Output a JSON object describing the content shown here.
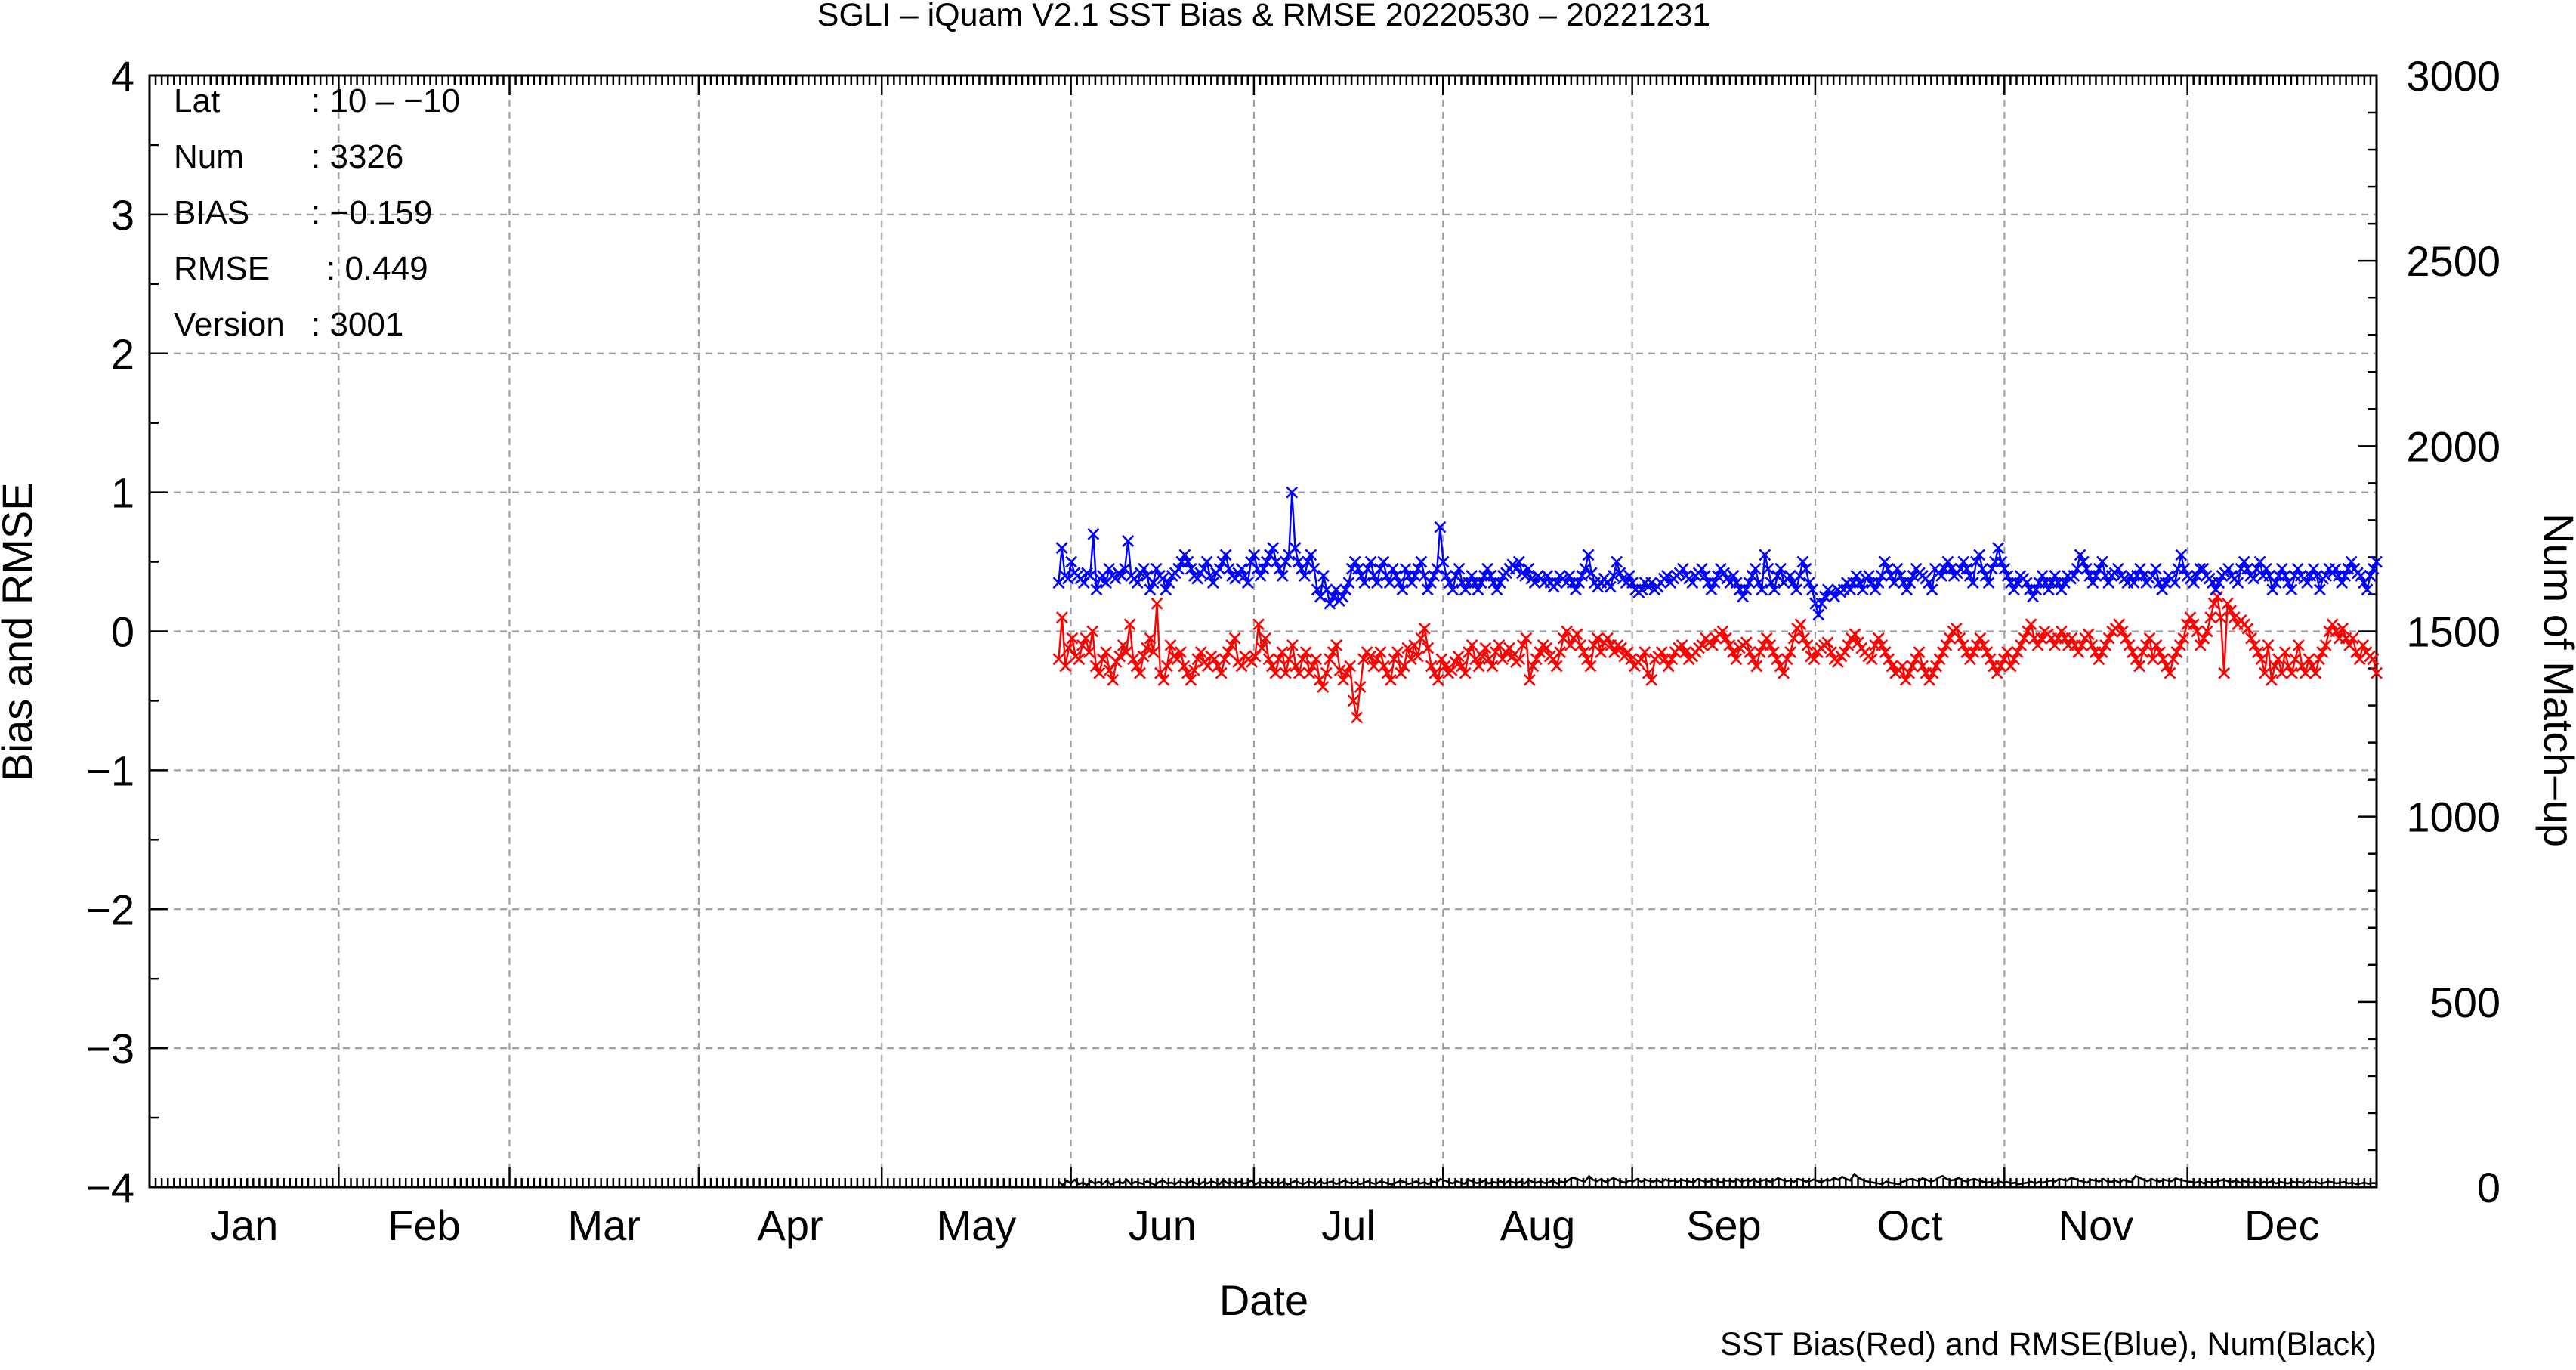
{
  "chart_data": {
    "type": "line",
    "title": "SGLI – iQuam V2.1 SST Bias & RMSE 20220530 – 20221231",
    "xlabel": "Date",
    "ylabel_left": "Bias and RMSE",
    "ylabel_right": "Num of Match–up",
    "footer": "SST Bias(Red) and RMSE(Blue), Num(Black)",
    "x_tick_labels": [
      "Jan",
      "Feb",
      "Mar",
      "Apr",
      "May",
      "Jun",
      "Jul",
      "Aug",
      "Sep",
      "Oct",
      "Nov",
      "Dec"
    ],
    "month_start_days": [
      1,
      32,
      60,
      91,
      121,
      152,
      182,
      213,
      244,
      274,
      305,
      335
    ],
    "xlim_day_of_year": [
      1,
      366
    ],
    "ylim_left": [
      -4,
      4
    ],
    "ylim_right": [
      0,
      3000
    ],
    "yticks_left": [
      "4",
      "3",
      "2",
      "1",
      "0",
      "−1",
      "−2",
      "−3",
      "−4"
    ],
    "yticks_right": [
      "3000",
      "2500",
      "2000",
      "1500",
      "1000",
      "500",
      "0"
    ],
    "grid": true,
    "info_box": [
      {
        "key": "Lat",
        "value": ": 10 – −10"
      },
      {
        "key": "Num",
        "value": ": 3326"
      },
      {
        "key": "BIAS",
        "value": ": −0.159"
      },
      {
        "key": "RMSE",
        "value": ": 0.449"
      },
      {
        "key": "Version",
        "value": ": 3001"
      }
    ],
    "series_start_day_of_year": 150,
    "series": [
      {
        "color": "#ff0000",
        "marker": "x",
        "axis": "left",
        "values": [
          -0.2,
          0.1,
          -0.25,
          -0.12,
          -0.05,
          -0.18,
          -0.2,
          -0.1,
          -0.05,
          -0.15,
          0.0,
          -0.25,
          -0.3,
          -0.2,
          -0.15,
          -0.28,
          -0.35,
          -0.22,
          -0.18,
          -0.1,
          -0.15,
          0.05,
          -0.2,
          -0.25,
          -0.3,
          -0.18,
          -0.12,
          -0.05,
          -0.15,
          0.2,
          -0.3,
          -0.35,
          -0.25,
          -0.1,
          -0.18,
          -0.2,
          -0.15,
          -0.25,
          -0.3,
          -0.35,
          -0.28,
          -0.2,
          -0.15,
          -0.22,
          -0.25,
          -0.18,
          -0.2,
          -0.25,
          -0.3,
          -0.2,
          -0.15,
          -0.1,
          -0.05,
          -0.22,
          -0.25,
          -0.18,
          -0.2,
          -0.22,
          -0.18,
          0.05,
          -0.12,
          -0.05,
          -0.2,
          -0.25,
          -0.3,
          -0.2,
          -0.15,
          -0.3,
          -0.2,
          -0.1,
          -0.25,
          -0.3,
          -0.2,
          -0.15,
          -0.3,
          -0.25,
          -0.2,
          -0.35,
          -0.4,
          -0.3,
          -0.2,
          -0.15,
          -0.1,
          -0.28,
          -0.35,
          -0.3,
          -0.25,
          -0.5,
          -0.62,
          -0.4,
          -0.2,
          -0.15,
          -0.18,
          -0.25,
          -0.2,
          -0.15,
          -0.25,
          -0.3,
          -0.35,
          -0.2,
          -0.15,
          -0.3,
          -0.25,
          -0.12,
          -0.2,
          -0.1,
          -0.18,
          -0.05,
          0.02,
          -0.12,
          -0.25,
          -0.3,
          -0.35,
          -0.2,
          -0.25,
          -0.3,
          -0.28,
          -0.22,
          -0.18,
          -0.25,
          -0.3,
          -0.15,
          -0.1,
          -0.2,
          -0.25,
          -0.18,
          -0.12,
          -0.2,
          -0.25,
          -0.15,
          -0.1,
          -0.2,
          -0.15,
          -0.12,
          -0.18,
          -0.22,
          -0.2,
          -0.1,
          -0.05,
          -0.35,
          -0.25,
          -0.2,
          -0.15,
          -0.1,
          -0.12,
          -0.18,
          -0.2,
          -0.25,
          -0.15,
          -0.05,
          0.0,
          -0.1,
          -0.05,
          -0.02,
          -0.1,
          -0.15,
          -0.2,
          -0.25,
          -0.1,
          -0.05,
          -0.15,
          -0.08,
          -0.05,
          -0.1,
          -0.15,
          -0.1,
          -0.12,
          -0.18,
          -0.15,
          -0.2,
          -0.25,
          -0.22,
          -0.2,
          -0.15,
          -0.3,
          -0.35,
          -0.2,
          -0.18,
          -0.15,
          -0.2,
          -0.25,
          -0.2,
          -0.15,
          -0.12,
          -0.1,
          -0.15,
          -0.2,
          -0.18,
          -0.15,
          -0.12,
          -0.1,
          -0.05,
          -0.08,
          -0.1,
          -0.05,
          -0.02,
          0.0,
          -0.05,
          -0.1,
          -0.15,
          -0.2,
          -0.12,
          -0.1,
          -0.08,
          -0.15,
          -0.2,
          -0.25,
          -0.15,
          -0.1,
          -0.05,
          -0.1,
          -0.15,
          -0.2,
          -0.25,
          -0.3,
          -0.2,
          -0.15,
          -0.05,
          0.02,
          0.05,
          -0.05,
          -0.1,
          -0.18,
          -0.2,
          -0.15,
          -0.12,
          -0.1,
          -0.08,
          -0.15,
          -0.2,
          -0.22,
          -0.18,
          -0.15,
          -0.1,
          -0.05,
          -0.02,
          -0.08,
          -0.12,
          -0.15,
          -0.18,
          -0.2,
          -0.1,
          -0.05,
          -0.1,
          -0.15,
          -0.2,
          -0.25,
          -0.3,
          -0.28,
          -0.25,
          -0.35,
          -0.3,
          -0.25,
          -0.2,
          -0.15,
          -0.25,
          -0.3,
          -0.35,
          -0.3,
          -0.25,
          -0.2,
          -0.15,
          -0.1,
          -0.05,
          0.0,
          0.02,
          -0.05,
          -0.1,
          -0.15,
          -0.2,
          -0.15,
          -0.1,
          -0.05,
          -0.1,
          -0.15,
          -0.2,
          -0.25,
          -0.3,
          -0.25,
          -0.2,
          -0.15,
          -0.25,
          -0.2,
          -0.15,
          -0.1,
          -0.05,
          0.0,
          0.05,
          -0.05,
          -0.1,
          -0.05,
          0.0,
          -0.02,
          -0.05,
          -0.1,
          -0.05,
          0.0,
          -0.05,
          -0.1,
          -0.05,
          -0.1,
          -0.15,
          -0.1,
          -0.05,
          -0.02,
          -0.1,
          -0.15,
          -0.2,
          -0.15,
          -0.1,
          -0.05,
          0.0,
          0.02,
          0.05,
          0.0,
          -0.05,
          -0.1,
          -0.15,
          -0.2,
          -0.25,
          -0.15,
          -0.1,
          -0.05,
          -0.2,
          -0.1,
          -0.15,
          -0.2,
          -0.25,
          -0.3,
          -0.2,
          -0.15,
          -0.1,
          -0.05,
          0.05,
          0.1,
          0.05,
          0.0,
          -0.1,
          -0.05,
          0.0,
          0.1,
          0.2,
          0.25,
          0.1,
          -0.3,
          0.2,
          0.15,
          0.1,
          0.05,
          0.08,
          0.05,
          0.02,
          -0.05,
          -0.1,
          -0.15,
          -0.2,
          -0.3,
          -0.1,
          -0.35,
          -0.25,
          -0.2,
          -0.3,
          -0.15,
          -0.25,
          -0.3,
          -0.2,
          -0.1,
          -0.25,
          -0.3,
          -0.2,
          -0.25,
          -0.3,
          -0.2,
          -0.15,
          -0.1,
          0.0,
          0.05,
          0.0,
          -0.05,
          0.02,
          -0.05,
          -0.1,
          -0.05,
          -0.15,
          -0.2,
          -0.1,
          -0.15,
          -0.18,
          -0.2,
          -0.3
        ]
      },
      {
        "color": "#0000ff",
        "marker": "x",
        "axis": "left",
        "values": [
          0.35,
          0.6,
          0.4,
          0.38,
          0.5,
          0.42,
          0.4,
          0.38,
          0.35,
          0.42,
          0.4,
          0.7,
          0.3,
          0.38,
          0.4,
          0.35,
          0.45,
          0.4,
          0.38,
          0.42,
          0.4,
          0.45,
          0.65,
          0.4,
          0.38,
          0.35,
          0.42,
          0.45,
          0.4,
          0.3,
          0.35,
          0.45,
          0.4,
          0.38,
          0.3,
          0.35,
          0.4,
          0.42,
          0.45,
          0.5,
          0.55,
          0.5,
          0.45,
          0.4,
          0.38,
          0.42,
          0.45,
          0.5,
          0.4,
          0.35,
          0.42,
          0.45,
          0.5,
          0.55,
          0.45,
          0.4,
          0.38,
          0.42,
          0.45,
          0.4,
          0.35,
          0.5,
          0.55,
          0.45,
          0.4,
          0.45,
          0.5,
          0.55,
          0.6,
          0.5,
          0.45,
          0.4,
          0.5,
          0.55,
          1.0,
          0.6,
          0.5,
          0.45,
          0.4,
          0.5,
          0.55,
          0.45,
          0.3,
          0.25,
          0.4,
          0.3,
          0.2,
          0.25,
          0.3,
          0.22,
          0.25,
          0.3,
          0.35,
          0.45,
          0.5,
          0.45,
          0.4,
          0.35,
          0.45,
          0.5,
          0.4,
          0.35,
          0.45,
          0.5,
          0.4,
          0.35,
          0.45,
          0.4,
          0.35,
          0.3,
          0.45,
          0.4,
          0.35,
          0.4,
          0.45,
          0.5,
          0.4,
          0.3,
          0.35,
          0.4,
          0.45,
          0.75,
          0.5,
          0.4,
          0.35,
          0.3,
          0.4,
          0.45,
          0.35,
          0.3,
          0.35,
          0.4,
          0.35,
          0.3,
          0.35,
          0.4,
          0.45,
          0.4,
          0.35,
          0.3,
          0.35,
          0.4,
          0.42,
          0.45,
          0.48,
          0.45,
          0.5,
          0.42,
          0.4,
          0.45,
          0.38,
          0.35,
          0.4,
          0.38,
          0.35,
          0.4,
          0.35,
          0.32,
          0.35,
          0.4,
          0.38,
          0.35,
          0.4,
          0.35,
          0.3,
          0.35,
          0.4,
          0.45,
          0.55,
          0.42,
          0.35,
          0.32,
          0.35,
          0.38,
          0.35,
          0.32,
          0.4,
          0.5,
          0.42,
          0.38,
          0.35,
          0.4,
          0.35,
          0.3,
          0.28,
          0.3,
          0.35,
          0.32,
          0.35,
          0.3,
          0.32,
          0.35,
          0.38,
          0.4,
          0.35,
          0.38,
          0.4,
          0.42,
          0.45,
          0.4,
          0.38,
          0.35,
          0.4,
          0.42,
          0.45,
          0.4,
          0.35,
          0.3,
          0.35,
          0.4,
          0.45,
          0.42,
          0.38,
          0.35,
          0.4,
          0.35,
          0.3,
          0.25,
          0.3,
          0.35,
          0.4,
          0.45,
          0.35,
          0.3,
          0.55,
          0.45,
          0.35,
          0.3,
          0.4,
          0.45,
          0.35,
          0.38,
          0.4,
          0.35,
          0.3,
          0.4,
          0.5,
          0.45,
          0.35,
          0.3,
          0.2,
          0.12,
          0.2,
          0.25,
          0.3,
          0.28,
          0.25,
          0.3,
          0.28,
          0.3,
          0.35,
          0.3,
          0.35,
          0.4,
          0.35,
          0.3,
          0.38,
          0.4,
          0.35,
          0.3,
          0.35,
          0.4,
          0.5,
          0.45,
          0.4,
          0.35,
          0.45,
          0.4,
          0.35,
          0.3,
          0.35,
          0.4,
          0.45,
          0.42,
          0.4,
          0.38,
          0.35,
          0.3,
          0.45,
          0.42,
          0.4,
          0.45,
          0.5,
          0.45,
          0.4,
          0.42,
          0.45,
          0.5,
          0.45,
          0.4,
          0.35,
          0.5,
          0.55,
          0.45,
          0.4,
          0.35,
          0.45,
          0.5,
          0.6,
          0.5,
          0.45,
          0.4,
          0.35,
          0.3,
          0.35,
          0.4,
          0.38,
          0.35,
          0.3,
          0.25,
          0.3,
          0.35,
          0.4,
          0.35,
          0.3,
          0.35,
          0.4,
          0.35,
          0.3,
          0.35,
          0.4,
          0.38,
          0.4,
          0.45,
          0.55,
          0.5,
          0.45,
          0.4,
          0.35,
          0.4,
          0.45,
          0.5,
          0.4,
          0.35,
          0.4,
          0.42,
          0.45,
          0.4,
          0.38,
          0.35,
          0.4,
          0.35,
          0.4,
          0.45,
          0.4,
          0.35,
          0.38,
          0.4,
          0.45,
          0.35,
          0.3,
          0.35,
          0.4,
          0.38,
          0.35,
          0.45,
          0.55,
          0.45,
          0.4,
          0.38,
          0.35,
          0.4,
          0.45,
          0.45,
          0.4,
          0.38,
          0.35,
          0.3,
          0.35,
          0.4,
          0.42,
          0.45,
          0.4,
          0.38,
          0.35,
          0.45,
          0.5,
          0.45,
          0.4,
          0.38,
          0.45,
          0.5,
          0.4,
          0.45,
          0.4,
          0.3,
          0.35,
          0.4,
          0.45,
          0.4,
          0.35,
          0.3,
          0.4,
          0.45,
          0.4,
          0.38,
          0.35,
          0.4,
          0.45,
          0.4,
          0.3,
          0.38,
          0.4,
          0.45,
          0.42,
          0.45,
          0.4,
          0.35,
          0.4,
          0.45,
          0.5,
          0.45,
          0.42,
          0.4,
          0.35,
          0.3,
          0.4,
          0.45,
          0.5
        ]
      },
      {
        "color": "#000000",
        "marker": "none",
        "axis": "right",
        "values": [
          15,
          5,
          18,
          10,
          20,
          8,
          12,
          6,
          16,
          10,
          14,
          9,
          18,
          7,
          12,
          15,
          10,
          20,
          8,
          14,
          12,
          9,
          16,
          11,
          6,
          14,
          18,
          10,
          12,
          8,
          15,
          13,
          9,
          17,
          11,
          7,
          14,
          10,
          16,
          12,
          8,
          19,
          11,
          13,
          9,
          15,
          10,
          12,
          18,
          8,
          14,
          11,
          16,
          9,
          13,
          10,
          15,
          7,
          12,
          17,
          11,
          9,
          14,
          13,
          8,
          16,
          10,
          12,
          15,
          9,
          11,
          18,
          13,
          10,
          14,
          8,
          12,
          16,
          11,
          9,
          15,
          13,
          10,
          7,
          12,
          17,
          14,
          9,
          11,
          16,
          10,
          13,
          8,
          15,
          12,
          22,
          18,
          14,
          10,
          16,
          12,
          9,
          20,
          15,
          11,
          13,
          18,
          10,
          14,
          12,
          16,
          9,
          17,
          13,
          11,
          15,
          10,
          19,
          14,
          12,
          16,
          11,
          13,
          18,
          10,
          15,
          12,
          20,
          26,
          22,
          18,
          15,
          30,
          20,
          16,
          22,
          14,
          18,
          25,
          20,
          15,
          12,
          18,
          16,
          22,
          14,
          20,
          17,
          15,
          19,
          13,
          21,
          16,
          18,
          14,
          20,
          17,
          15,
          12,
          22,
          18,
          14,
          16,
          20,
          15,
          13,
          18,
          17,
          15,
          21,
          14,
          19,
          16,
          22,
          13,
          18,
          20,
          15,
          17,
          24,
          20,
          16,
          18,
          14,
          22,
          19,
          15,
          17,
          21,
          16,
          14,
          20,
          18,
          25,
          20,
          28,
          22,
          18,
          35,
          26,
          20,
          16,
          14,
          12,
          10,
          8,
          15,
          12,
          10,
          8,
          14,
          18,
          22,
          20,
          16,
          24,
          20,
          15,
          18,
          26,
          30,
          22,
          18,
          20,
          25,
          18,
          15,
          20,
          22,
          18,
          15,
          12,
          14,
          10,
          16,
          12,
          14,
          10,
          12,
          8,
          10,
          12,
          15,
          10,
          14,
          12,
          16,
          18,
          15,
          22,
          20,
          18,
          25,
          22,
          18,
          15,
          12,
          20,
          18,
          15,
          22,
          16,
          14,
          18,
          12,
          20,
          16,
          14,
          30,
          26,
          20,
          16,
          22,
          18,
          15,
          20,
          18,
          16,
          24,
          20,
          18,
          15,
          14,
          12,
          16,
          10,
          14,
          12,
          15,
          18,
          20,
          16,
          14,
          18,
          12,
          16,
          14,
          12,
          15,
          10,
          14,
          12,
          16,
          10,
          14,
          12,
          10,
          15,
          12,
          14,
          10,
          16,
          12,
          14,
          10,
          12,
          15,
          13,
          10,
          12,
          14,
          10,
          12,
          8,
          10,
          12,
          9,
          11,
          10
        ]
      }
    ]
  }
}
